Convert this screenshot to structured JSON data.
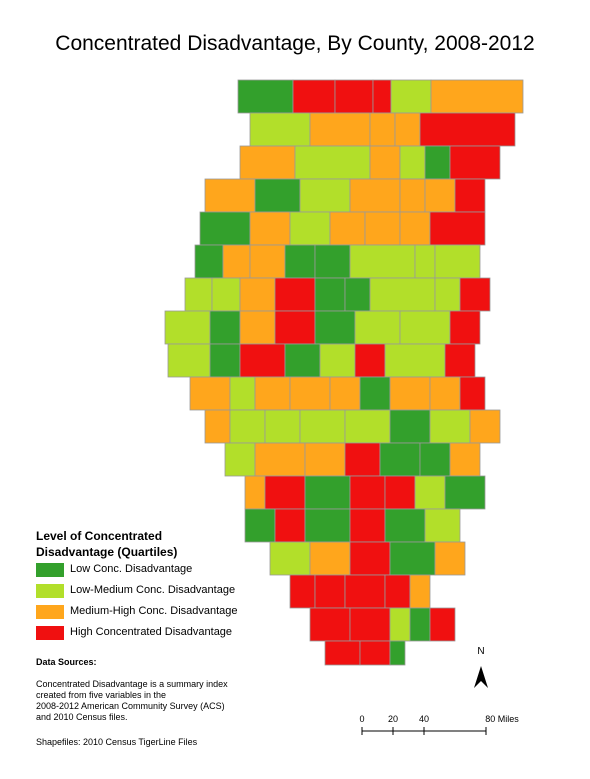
{
  "title": "Concentrated Disadvantage, By County, 2008-2012",
  "legend": {
    "title": "Level of Concentrated Disadvantage (Quartiles)",
    "items": [
      {
        "label": "Low Conc. Disadvantage",
        "color": "#33a02c"
      },
      {
        "label": "Low-Medium Conc. Disadvantage",
        "color": "#b2df2a"
      },
      {
        "label": "Medium-High Conc. Disadvantage",
        "color": "#ffa61c"
      },
      {
        "label": "High Concentrated Disadvantage",
        "color": "#f01010"
      }
    ]
  },
  "sources": {
    "heading": "Data Sources:",
    "lines": [
      "Concentrated Disadvantage is a summary index",
      "created from five variables in the",
      "2008-2012 American Community Survey (ACS)",
      "and 2010 Census files."
    ],
    "shapefiles": "Shapefiles: 2010 Census TigerLine Files"
  },
  "north": "N",
  "scale": [
    "0",
    "20",
    "40",
    "80 Miles"
  ]
}
